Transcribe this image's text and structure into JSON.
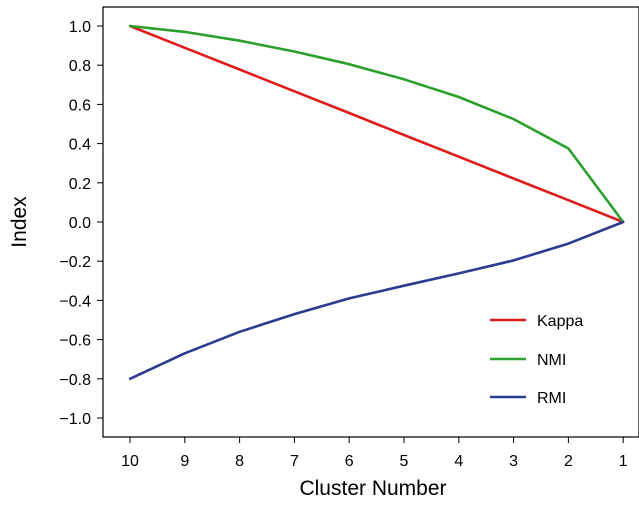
{
  "chart_data": {
    "type": "line",
    "xlabel": "Cluster Number",
    "ylabel": "Index",
    "categories": [
      "10",
      "9",
      "8",
      "7",
      "6",
      "5",
      "4",
      "3",
      "2",
      "1"
    ],
    "ylim": [
      -1.1,
      1.1
    ],
    "yticks": [
      "1.0",
      "0.8",
      "0.6",
      "0.4",
      "0.2",
      "0.0",
      "−0.2",
      "−0.4",
      "−0.6",
      "−0.8",
      "−1.0"
    ],
    "ytick_values": [
      1.0,
      0.8,
      0.6,
      0.4,
      0.2,
      0.0,
      -0.2,
      -0.4,
      -0.6,
      -0.8,
      -1.0
    ],
    "grid": false,
    "legend_position": "bottom-right",
    "series": [
      {
        "name": "Kappa",
        "color": "#dd1c1c",
        "values": [
          1.0,
          0.889,
          0.778,
          0.667,
          0.556,
          0.444,
          0.333,
          0.222,
          0.111,
          0.0
        ]
      },
      {
        "name": "NMI",
        "color": "#2ca02c",
        "values": [
          1.0,
          0.97,
          0.925,
          0.87,
          0.805,
          0.728,
          0.638,
          0.525,
          0.375,
          0.0
        ]
      },
      {
        "name": "RMI",
        "color": "#2b3b8f",
        "values": [
          -0.8,
          -0.67,
          -0.56,
          -0.47,
          -0.39,
          -0.325,
          -0.262,
          -0.196,
          -0.11,
          0.0
        ]
      }
    ]
  }
}
